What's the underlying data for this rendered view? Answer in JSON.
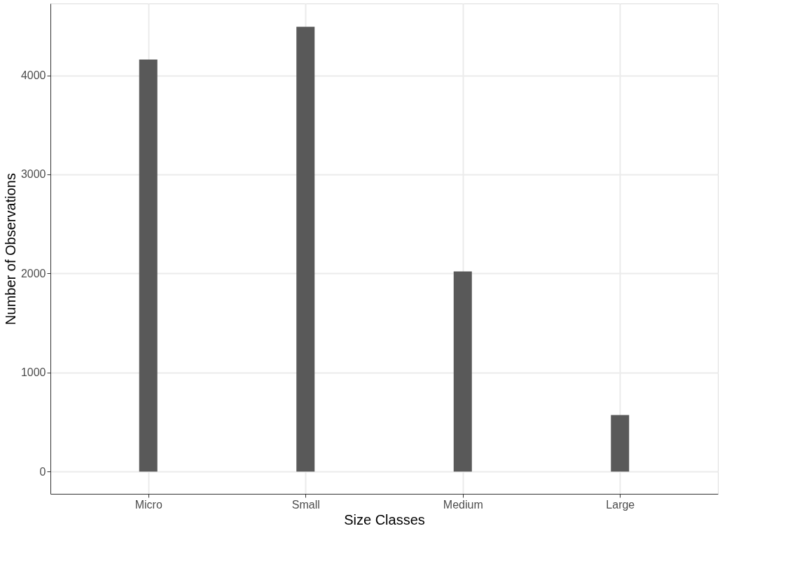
{
  "chart_data": {
    "type": "bar",
    "xlabel": "Size Classes",
    "ylabel": "Number of Observations",
    "categories": [
      "Micro",
      "Small",
      "Medium",
      "Large"
    ],
    "values": [
      4160,
      4490,
      2020,
      570
    ],
    "color": "#595959",
    "ylim": [
      -225,
      4725
    ],
    "yticks": [
      0,
      1000,
      2000,
      3000,
      4000
    ],
    "grid": true
  }
}
